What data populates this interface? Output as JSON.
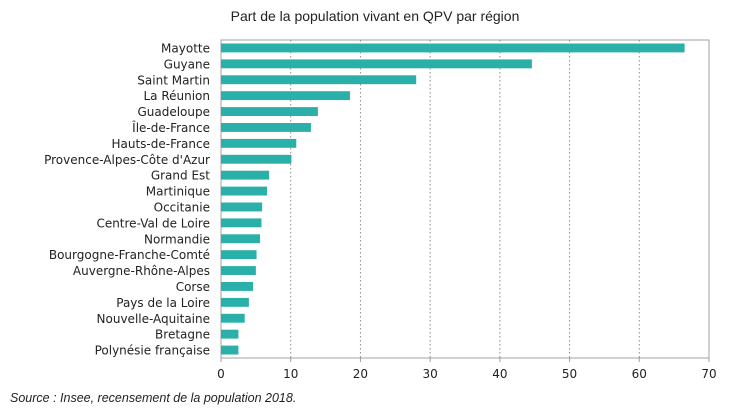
{
  "chart_data": {
    "type": "bar",
    "orientation": "horizontal",
    "title": "Part de la population vivant en QPV par région",
    "source": "Source : Insee, recensement de la population 2018.",
    "xlabel": "",
    "ylabel": "",
    "xlim": [
      0,
      70
    ],
    "xticks": [
      0,
      10,
      20,
      30,
      40,
      50,
      60,
      70
    ],
    "grid": "vertical dotted",
    "bar_color": "#2ab0a8",
    "categories": [
      "Mayotte",
      "Guyane",
      "Saint Martin",
      "La Réunion",
      "Guadeloupe",
      "Île-de-France",
      "Hauts-de-France",
      "Provence-Alpes-Côte d'Azur",
      "Grand Est",
      "Martinique",
      "Occitanie",
      "Centre-Val de Loire",
      "Normandie",
      "Bourgogne-Franche-Comté",
      "Auvergne-Rhône-Alpes",
      "Corse",
      "Pays de la Loire",
      "Nouvelle-Aquitaine",
      "Bretagne",
      "Polynésie française"
    ],
    "values": [
      66.5,
      44.6,
      28.0,
      18.5,
      13.9,
      12.9,
      10.8,
      10.1,
      6.9,
      6.6,
      5.9,
      5.8,
      5.6,
      5.1,
      5.0,
      4.6,
      4.0,
      3.4,
      2.5,
      2.5
    ]
  }
}
